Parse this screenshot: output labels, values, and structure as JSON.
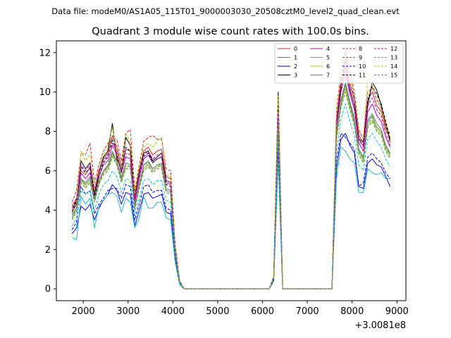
{
  "figure": {
    "suptitle": "Data file: modeM0/AS1A05_115T01_9000003030_20508cztM0_level2_quad_clean.evt",
    "title": "Quadrant 3 module wise count rates with 100.0s bins.",
    "x_offset_label": "+3.0081e8"
  },
  "chart_data": {
    "type": "line",
    "title": "Quadrant 3 module wise count rates with 100.0s bins.",
    "xlabel": "",
    "ylabel": "",
    "x_offset_text": "+3.0081e8",
    "xlim": [
      1400,
      9200
    ],
    "ylim": [
      -0.6,
      12.6
    ],
    "xticks": [
      2000,
      3000,
      4000,
      5000,
      6000,
      7000,
      8000,
      9000
    ],
    "yticks": [
      0,
      2,
      4,
      6,
      8,
      10,
      12
    ],
    "grid": false,
    "legend_position": "top-right",
    "legend_columns": 4,
    "x": [
      1750,
      1850,
      1950,
      2050,
      2150,
      2250,
      2350,
      2450,
      2550,
      2650,
      2750,
      2850,
      2950,
      3050,
      3150,
      3250,
      3350,
      3450,
      3550,
      3650,
      3750,
      3850,
      3950,
      4050,
      4150,
      4250,
      4350,
      4450,
      4550,
      4650,
      4750,
      4850,
      4950,
      5050,
      5150,
      5250,
      5350,
      5450,
      5550,
      5650,
      5750,
      5850,
      5950,
      6050,
      6150,
      6250,
      6350,
      6450,
      6550,
      6650,
      6750,
      6850,
      6950,
      7050,
      7150,
      7250,
      7350,
      7450,
      7550,
      7650,
      7750,
      7850,
      7950,
      8050,
      8150,
      8250,
      8350,
      8450,
      8550,
      8650,
      8750,
      8850
    ],
    "series": [
      {
        "name": "0",
        "color": "#d62728",
        "dashed": false,
        "values": [
          4.2,
          4.6,
          6.0,
          5.8,
          6.2,
          5.1,
          6.0,
          6.6,
          6.9,
          7.8,
          7.2,
          6.2,
          7.1,
          7.0,
          4.6,
          5.9,
          7.0,
          7.2,
          6.8,
          7.0,
          7.1,
          5.7,
          5.6,
          2.2,
          0.4,
          0,
          0,
          0,
          0,
          0,
          0,
          0,
          0,
          0,
          0,
          0,
          0,
          0,
          0,
          0,
          0,
          0,
          0,
          0,
          0,
          0.6,
          9.1,
          0,
          0,
          0,
          0,
          0,
          0,
          0,
          0,
          0,
          0,
          0,
          0,
          8.6,
          10.6,
          11.6,
          10.4,
          9.6,
          7.8,
          7.4,
          9.6,
          10.0,
          9.3,
          9.0,
          8.1,
          7.6
        ]
      },
      {
        "name": "1",
        "color": "#2ca02c",
        "dashed": false,
        "values": [
          3.8,
          4.1,
          5.6,
          5.3,
          5.6,
          4.6,
          5.5,
          6.0,
          6.2,
          6.9,
          6.5,
          5.6,
          6.4,
          6.3,
          4.2,
          5.3,
          6.3,
          6.5,
          6.1,
          6.3,
          6.3,
          5.1,
          5.0,
          2.0,
          0.3,
          0,
          0,
          0,
          0,
          0,
          0,
          0,
          0,
          0,
          0,
          0,
          0,
          0,
          0,
          0,
          0,
          0,
          0,
          0,
          0,
          0.5,
          8.3,
          0,
          0,
          0,
          0,
          0,
          0,
          0,
          0,
          0,
          0,
          0,
          0,
          7.8,
          9.5,
          10.4,
          9.4,
          8.6,
          7.1,
          6.6,
          8.5,
          8.8,
          8.2,
          8.0,
          7.3,
          6.8
        ]
      },
      {
        "name": "2",
        "color": "#0000ee",
        "dashed": false,
        "values": [
          2.8,
          3.1,
          4.2,
          4.0,
          4.3,
          3.5,
          4.1,
          4.5,
          4.8,
          5.3,
          5.0,
          4.3,
          4.9,
          4.8,
          3.2,
          4.0,
          4.8,
          4.9,
          4.6,
          4.7,
          4.8,
          3.9,
          3.8,
          1.5,
          0.3,
          0,
          0,
          0,
          0,
          0,
          0,
          0,
          0,
          0,
          0,
          0,
          0,
          0,
          0,
          0,
          0,
          0,
          0,
          0,
          0,
          0.4,
          6.9,
          0,
          0,
          0,
          0,
          0,
          0,
          0,
          0,
          0,
          0,
          0,
          0,
          6.1,
          7.6,
          7.9,
          7.3,
          6.9,
          5.2,
          5.1,
          6.4,
          6.6,
          6.3,
          6.2,
          5.7,
          5.2
        ]
      },
      {
        "name": "3",
        "color": "#000000",
        "dashed": false,
        "values": [
          4.0,
          4.5,
          6.5,
          6.1,
          6.4,
          4.9,
          5.9,
          6.7,
          7.0,
          8.4,
          6.6,
          6.1,
          7.7,
          7.3,
          4.8,
          6.0,
          6.9,
          7.0,
          6.5,
          6.7,
          6.9,
          5.5,
          5.4,
          2.1,
          0.4,
          0,
          0,
          0,
          0,
          0,
          0,
          0,
          0,
          0,
          0,
          0,
          0,
          0,
          0,
          0,
          0,
          0,
          0,
          0,
          0,
          0.6,
          10.0,
          0,
          0,
          0,
          0,
          0,
          0,
          0,
          0,
          0,
          0,
          0,
          0,
          8.3,
          10.3,
          11.3,
          10.1,
          9.3,
          7.6,
          7.5,
          9.3,
          10.5,
          10.1,
          9.3,
          8.3,
          7.5
        ]
      },
      {
        "name": "4",
        "color": "#bf00bf",
        "dashed": false,
        "values": [
          3.9,
          4.3,
          5.9,
          5.6,
          5.9,
          4.8,
          5.7,
          6.3,
          6.5,
          7.3,
          6.8,
          5.9,
          6.7,
          6.6,
          4.4,
          5.6,
          6.6,
          6.8,
          6.4,
          6.6,
          6.7,
          5.4,
          5.3,
          2.0,
          0.4,
          0,
          0,
          0,
          0,
          0,
          0,
          0,
          0,
          0,
          0,
          0,
          0,
          0,
          0,
          0,
          0,
          0,
          0,
          0,
          0,
          0.5,
          8.7,
          0,
          0,
          0,
          0,
          0,
          0,
          0,
          0,
          0,
          0,
          0,
          0,
          8.2,
          10.0,
          11.0,
          9.9,
          9.1,
          7.4,
          7.0,
          9.0,
          9.4,
          8.8,
          8.5,
          7.7,
          7.2
        ]
      },
      {
        "name": "5",
        "color": "#17becf",
        "dashed": false,
        "values": [
          2.6,
          2.5,
          4.7,
          4.3,
          4.6,
          3.1,
          4.2,
          4.5,
          4.8,
          4.9,
          4.7,
          3.9,
          4.6,
          4.4,
          3.1,
          3.6,
          4.7,
          4.1,
          4.1,
          4.4,
          4.4,
          3.6,
          3.5,
          1.4,
          0.2,
          0,
          0,
          0,
          0,
          0,
          0,
          0,
          0,
          0,
          0,
          0,
          0,
          0,
          0,
          0,
          0,
          0,
          0,
          0,
          0,
          0.4,
          6.5,
          0,
          0,
          0,
          0,
          0,
          0,
          0,
          0,
          0,
          0,
          0,
          0,
          5.6,
          7.2,
          7.0,
          6.6,
          6.4,
          4.9,
          4.9,
          6.1,
          5.9,
          5.8,
          5.9,
          5.6,
          5.6
        ]
      },
      {
        "name": "6",
        "color": "#bcbd22",
        "dashed": false,
        "values": [
          3.6,
          4.0,
          5.5,
          5.2,
          5.5,
          4.5,
          5.4,
          5.9,
          6.1,
          6.8,
          6.4,
          5.5,
          6.2,
          6.2,
          4.1,
          5.2,
          6.1,
          6.3,
          6.0,
          6.2,
          6.2,
          5.0,
          4.9,
          1.9,
          0.3,
          0,
          0,
          0,
          0,
          0,
          0,
          0,
          0,
          0,
          0,
          0,
          0,
          0,
          0,
          0,
          0,
          0,
          0,
          0,
          0,
          0.5,
          8.0,
          0,
          0,
          0,
          0,
          0,
          0,
          0,
          0,
          0,
          0,
          0,
          0,
          7.7,
          9.3,
          10.2,
          9.2,
          8.4,
          6.9,
          6.5,
          8.3,
          8.6,
          8.1,
          7.9,
          7.1,
          6.7
        ]
      },
      {
        "name": "7",
        "color": "#7f7f7f",
        "dashed": false,
        "values": [
          3.7,
          4.1,
          5.6,
          5.4,
          5.7,
          4.6,
          5.5,
          6.0,
          6.3,
          7.0,
          6.5,
          5.7,
          6.4,
          6.3,
          4.2,
          5.3,
          6.3,
          6.4,
          6.1,
          6.3,
          6.4,
          5.1,
          5.0,
          2.0,
          0.3,
          0,
          0,
          0,
          0,
          0,
          0,
          0,
          0,
          0,
          0,
          0,
          0,
          0,
          0,
          0,
          0,
          0,
          0,
          0,
          0,
          0.5,
          8.4,
          0,
          0,
          0,
          0,
          0,
          0,
          0,
          0,
          0,
          0,
          0,
          0,
          7.9,
          9.6,
          10.5,
          9.5,
          8.7,
          7.1,
          6.7,
          8.6,
          8.9,
          8.4,
          8.1,
          7.3,
          6.9
        ]
      },
      {
        "name": "8",
        "color": "#d62728",
        "dashed": true,
        "values": [
          4.4,
          5.0,
          6.9,
          6.8,
          7.4,
          5.4,
          6.3,
          7.0,
          7.4,
          7.6,
          7.6,
          6.5,
          7.9,
          8.1,
          5.0,
          6.3,
          7.5,
          7.7,
          7.8,
          7.6,
          7.6,
          6.1,
          6.0,
          2.3,
          0.4,
          0,
          0,
          0,
          0,
          0,
          0,
          0,
          0,
          0,
          0,
          0,
          0,
          0,
          0,
          0,
          0,
          0,
          0,
          0,
          0,
          0.6,
          9.5,
          0,
          0,
          0,
          0,
          0,
          0,
          0,
          0,
          0,
          0,
          0,
          0,
          9.0,
          11.1,
          12.2,
          11.0,
          10.0,
          8.1,
          7.6,
          10.0,
          10.2,
          9.6,
          9.2,
          8.4,
          7.8
        ]
      },
      {
        "name": "9",
        "color": "#2ca02c",
        "dashed": true,
        "values": [
          3.5,
          3.9,
          5.4,
          5.1,
          5.4,
          4.4,
          5.3,
          5.8,
          6.0,
          6.7,
          6.3,
          5.4,
          6.1,
          6.1,
          4.0,
          5.1,
          6.0,
          6.2,
          5.9,
          6.1,
          6.1,
          4.9,
          4.8,
          1.9,
          0.3,
          0,
          0,
          0,
          0,
          0,
          0,
          0,
          0,
          0,
          0,
          0,
          0,
          0,
          0,
          0,
          0,
          0,
          0,
          0,
          0,
          0.5,
          7.9,
          0,
          0,
          0,
          0,
          0,
          0,
          0,
          0,
          0,
          0,
          0,
          0,
          7.6,
          9.2,
          10.0,
          9.1,
          8.3,
          6.8,
          6.4,
          8.2,
          8.5,
          8.0,
          7.8,
          7.0,
          6.6
        ]
      },
      {
        "name": "10",
        "color": "#0000ee",
        "dashed": true,
        "values": [
          3.0,
          3.4,
          5.2,
          4.8,
          5.0,
          3.8,
          4.3,
          4.6,
          5.0,
          5.1,
          5.1,
          4.6,
          5.3,
          5.2,
          3.5,
          4.3,
          5.2,
          5.3,
          4.9,
          5.0,
          5.0,
          4.1,
          4.0,
          1.6,
          0.3,
          0,
          0,
          0,
          0,
          0,
          0,
          0,
          0,
          0,
          0,
          0,
          0,
          0,
          0,
          0,
          0,
          0,
          0,
          0,
          0,
          0.4,
          7.3,
          0,
          0,
          0,
          0,
          0,
          0,
          0,
          0,
          0,
          0,
          0,
          0,
          6.5,
          7.9,
          7.7,
          7.4,
          7.1,
          5.2,
          5.4,
          6.7,
          6.9,
          6.6,
          6.4,
          5.9,
          5.6
        ]
      },
      {
        "name": "11",
        "color": "#000000",
        "dashed": true,
        "values": [
          3.9,
          4.4,
          6.2,
          5.9,
          6.1,
          4.7,
          5.7,
          6.4,
          6.7,
          7.6,
          6.9,
          5.9,
          7.2,
          7.0,
          4.6,
          5.8,
          6.7,
          6.9,
          6.4,
          6.6,
          6.7,
          5.3,
          5.2,
          2.0,
          0.4,
          0,
          0,
          0,
          0,
          0,
          0,
          0,
          0,
          0,
          0,
          0,
          0,
          0,
          0,
          0,
          0,
          0,
          0,
          0,
          0,
          0.6,
          9.3,
          0,
          0,
          0,
          0,
          0,
          0,
          0,
          0,
          0,
          0,
          0,
          0,
          8.4,
          10.1,
          11.9,
          10.7,
          9.7,
          7.6,
          7.3,
          9.6,
          10.3,
          9.9,
          9.4,
          8.5,
          7.6
        ]
      },
      {
        "name": "12",
        "color": "#bf00bf",
        "dashed": true,
        "values": [
          4.1,
          4.6,
          6.3,
          6.0,
          6.3,
          5.0,
          5.9,
          6.5,
          6.8,
          7.4,
          7.0,
          6.0,
          6.9,
          6.8,
          4.5,
          5.7,
          6.8,
          7.0,
          6.6,
          6.8,
          6.9,
          5.5,
          5.4,
          2.1,
          0.4,
          0,
          0,
          0,
          0,
          0,
          0,
          0,
          0,
          0,
          0,
          0,
          0,
          0,
          0,
          0,
          0,
          0,
          0,
          0,
          0,
          0.5,
          8.9,
          0,
          0,
          0,
          0,
          0,
          0,
          0,
          0,
          0,
          0,
          0,
          0,
          8.5,
          10.3,
          11.3,
          10.2,
          9.3,
          7.6,
          7.2,
          9.3,
          9.7,
          9.1,
          8.8,
          7.9,
          7.3
        ]
      },
      {
        "name": "13",
        "color": "#17becf",
        "dashed": true,
        "values": [
          3.2,
          3.6,
          5.0,
          4.8,
          5.0,
          4.0,
          4.8,
          5.3,
          5.5,
          6.0,
          5.7,
          4.9,
          5.6,
          5.5,
          3.7,
          4.6,
          5.5,
          5.6,
          5.3,
          5.5,
          5.5,
          4.5,
          4.4,
          1.7,
          0.3,
          0,
          0,
          0,
          0,
          0,
          0,
          0,
          0,
          0,
          0,
          0,
          0,
          0,
          0,
          0,
          0,
          0,
          0,
          0,
          0,
          0.4,
          7.5,
          0,
          0,
          0,
          0,
          0,
          0,
          0,
          0,
          0,
          0,
          0,
          0,
          7.0,
          8.6,
          9.4,
          8.5,
          7.8,
          6.3,
          6.0,
          7.6,
          7.9,
          7.5,
          7.2,
          6.6,
          6.2
        ]
      },
      {
        "name": "14",
        "color": "#bcbd22",
        "dashed": true,
        "values": [
          4.0,
          4.4,
          7.0,
          6.5,
          6.8,
          5.0,
          6.2,
          6.8,
          7.3,
          8.2,
          6.9,
          6.1,
          7.9,
          7.5,
          4.8,
          6.1,
          7.2,
          7.4,
          7.2,
          7.5,
          7.7,
          5.8,
          5.7,
          2.2,
          0.4,
          0,
          0,
          0,
          0,
          0,
          0,
          0,
          0,
          0,
          0,
          0,
          0,
          0,
          0,
          0,
          0,
          0,
          0,
          0,
          0,
          0.6,
          9.8,
          0,
          0,
          0,
          0,
          0,
          0,
          0,
          0,
          0,
          0,
          0,
          0,
          8.8,
          10.9,
          11.8,
          10.7,
          9.8,
          8.0,
          7.6,
          10.9,
          10.3,
          9.8,
          9.1,
          8.2,
          7.4
        ]
      },
      {
        "name": "15",
        "color": "#7f7f7f",
        "dashed": true,
        "values": [
          3.6,
          4.0,
          5.5,
          5.3,
          5.6,
          4.5,
          5.4,
          5.9,
          6.2,
          6.9,
          6.4,
          5.6,
          6.3,
          6.2,
          4.1,
          5.2,
          6.2,
          6.3,
          6.0,
          6.2,
          6.3,
          5.0,
          4.9,
          1.9,
          0.3,
          0,
          0,
          0,
          0,
          0,
          0,
          0,
          0,
          0,
          0,
          0,
          0,
          0,
          0,
          0,
          0,
          0,
          0,
          0,
          0,
          0.5,
          8.2,
          0,
          0,
          0,
          0,
          0,
          0,
          0,
          0,
          0,
          0,
          0,
          0,
          7.8,
          9.4,
          10.3,
          9.3,
          8.5,
          7.0,
          6.6,
          8.4,
          8.7,
          8.2,
          8.0,
          7.2,
          6.8
        ]
      }
    ]
  }
}
